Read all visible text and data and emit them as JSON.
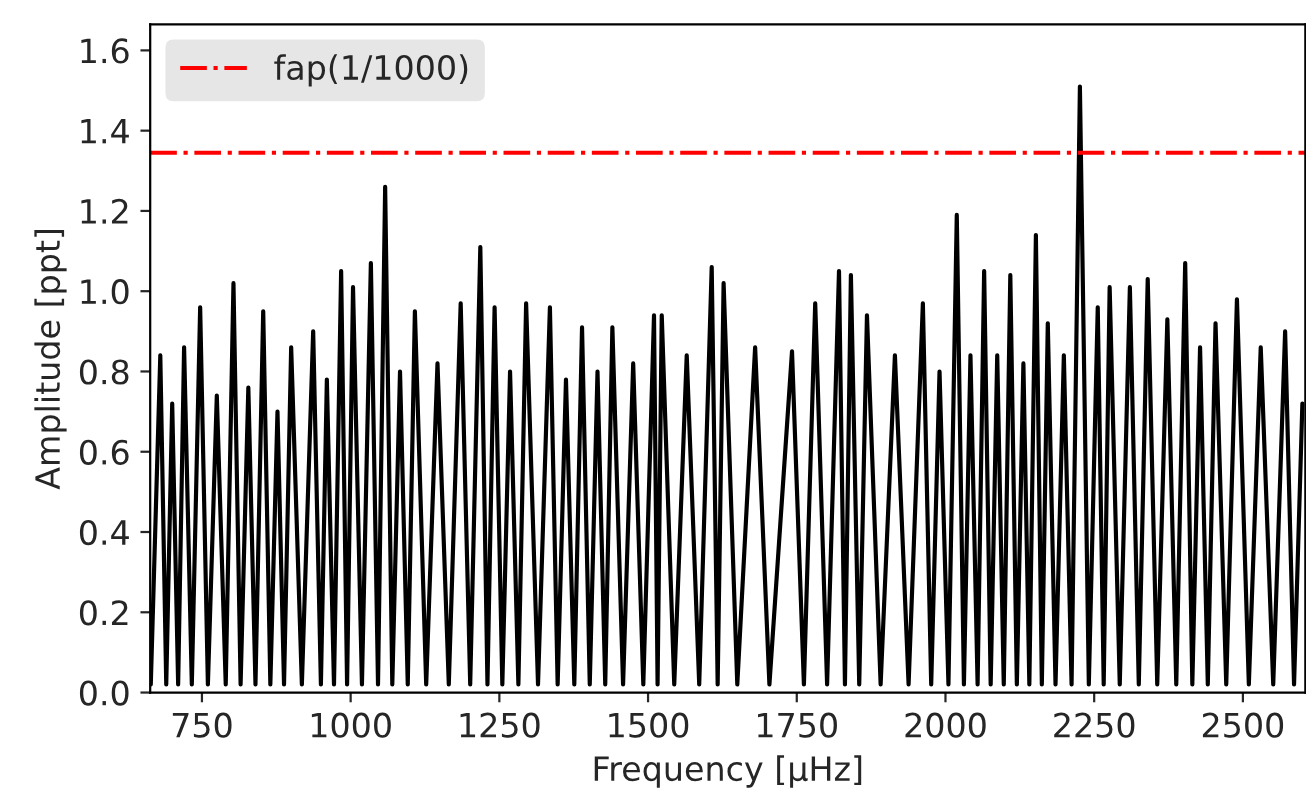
{
  "chart_data": {
    "type": "line",
    "xlabel": "Frequency [μHz]",
    "ylabel": "Amplitude [ppt]",
    "x": [
      664,
      680,
      690,
      700,
      710,
      720,
      733,
      747,
      760,
      775,
      790,
      803,
      815,
      828,
      840,
      853,
      865,
      877,
      888,
      900,
      918,
      937,
      950,
      960,
      972,
      984,
      994,
      1004,
      1019,
      1034,
      1046,
      1058,
      1070,
      1083,
      1096,
      1108,
      1127,
      1146,
      1165,
      1185,
      1201,
      1218,
      1230,
      1242,
      1255,
      1268,
      1282,
      1295,
      1315,
      1335,
      1348,
      1362,
      1376,
      1389,
      1402,
      1415,
      1428,
      1440,
      1458,
      1475,
      1492,
      1510,
      1516,
      1523,
      1544,
      1565,
      1586,
      1607,
      1617,
      1627,
      1650,
      1680,
      1704,
      1742,
      1762,
      1781,
      1801,
      1821,
      1831,
      1841,
      1855,
      1868,
      1891,
      1915,
      1938,
      1962,
      1976,
      1990,
      2005,
      2019,
      2031,
      2042,
      2054,
      2065,
      2076,
      2087,
      2098,
      2109,
      2120,
      2131,
      2141,
      2152,
      2162,
      2172,
      2185,
      2199,
      2212,
      2226,
      2241,
      2256,
      2266,
      2276,
      2293,
      2310,
      2325,
      2340,
      2356,
      2373,
      2388,
      2403,
      2415,
      2428,
      2441,
      2454,
      2472,
      2490,
      2510,
      2530,
      2551,
      2571,
      2586,
      2600
    ],
    "series": [
      {
        "color": "#000000",
        "values": [
          0.02,
          0.84,
          0.02,
          0.72,
          0.02,
          0.86,
          0.02,
          0.96,
          0.02,
          0.74,
          0.02,
          1.02,
          0.02,
          0.76,
          0.02,
          0.95,
          0.02,
          0.7,
          0.02,
          0.86,
          0.02,
          0.9,
          0.02,
          0.78,
          0.02,
          1.05,
          0.02,
          1.01,
          0.02,
          1.07,
          0.02,
          1.26,
          0.02,
          0.8,
          0.02,
          0.95,
          0.02,
          0.82,
          0.02,
          0.97,
          0.02,
          1.11,
          0.02,
          0.96,
          0.02,
          0.8,
          0.02,
          0.97,
          0.02,
          0.96,
          0.02,
          0.78,
          0.02,
          0.91,
          0.02,
          0.8,
          0.02,
          0.91,
          0.02,
          0.82,
          0.02,
          0.94,
          0.02,
          0.94,
          0.02,
          0.84,
          0.02,
          1.06,
          0.02,
          1.02,
          0.02,
          0.86,
          0.02,
          0.85,
          0.02,
          0.97,
          0.02,
          1.05,
          0.02,
          1.04,
          0.02,
          0.94,
          0.02,
          0.84,
          0.02,
          0.97,
          0.02,
          0.8,
          0.02,
          1.19,
          0.02,
          0.84,
          0.02,
          1.05,
          0.02,
          0.84,
          0.02,
          1.04,
          0.02,
          0.82,
          0.02,
          1.14,
          0.02,
          0.92,
          0.02,
          0.84,
          0.02,
          1.51,
          0.02,
          0.96,
          0.02,
          1.01,
          0.02,
          1.01,
          0.02,
          1.03,
          0.02,
          0.93,
          0.02,
          1.07,
          0.02,
          0.86,
          0.02,
          0.92,
          0.02,
          0.98,
          0.02,
          0.86,
          0.02,
          0.9,
          0.02,
          0.72
        ]
      }
    ],
    "xlim": [
      663,
      2605
    ],
    "ylim": [
      0,
      1.665
    ],
    "xticks": [
      750,
      1000,
      1250,
      1500,
      1750,
      2000,
      2250,
      2500
    ],
    "yticks": [
      {
        "value": 0,
        "label": "0.0"
      },
      {
        "value": 0.2,
        "label": "0.2"
      },
      {
        "value": 0.4,
        "label": "0.4"
      },
      {
        "value": 0.6,
        "label": "0.6"
      },
      {
        "value": 0.8,
        "label": "0.8"
      },
      {
        "value": 1.0,
        "label": "1.0"
      },
      {
        "value": 1.2,
        "label": "1.2"
      },
      {
        "value": 1.4,
        "label": "1.4"
      },
      {
        "value": 1.6,
        "label": "1.6"
      }
    ],
    "ref_lines": [
      {
        "axis": "y",
        "value": 1.345,
        "label": "fap(1/1000)",
        "color": "#ff0000",
        "line_style": "dashdot"
      }
    ],
    "legend": "top left",
    "grid": false
  }
}
